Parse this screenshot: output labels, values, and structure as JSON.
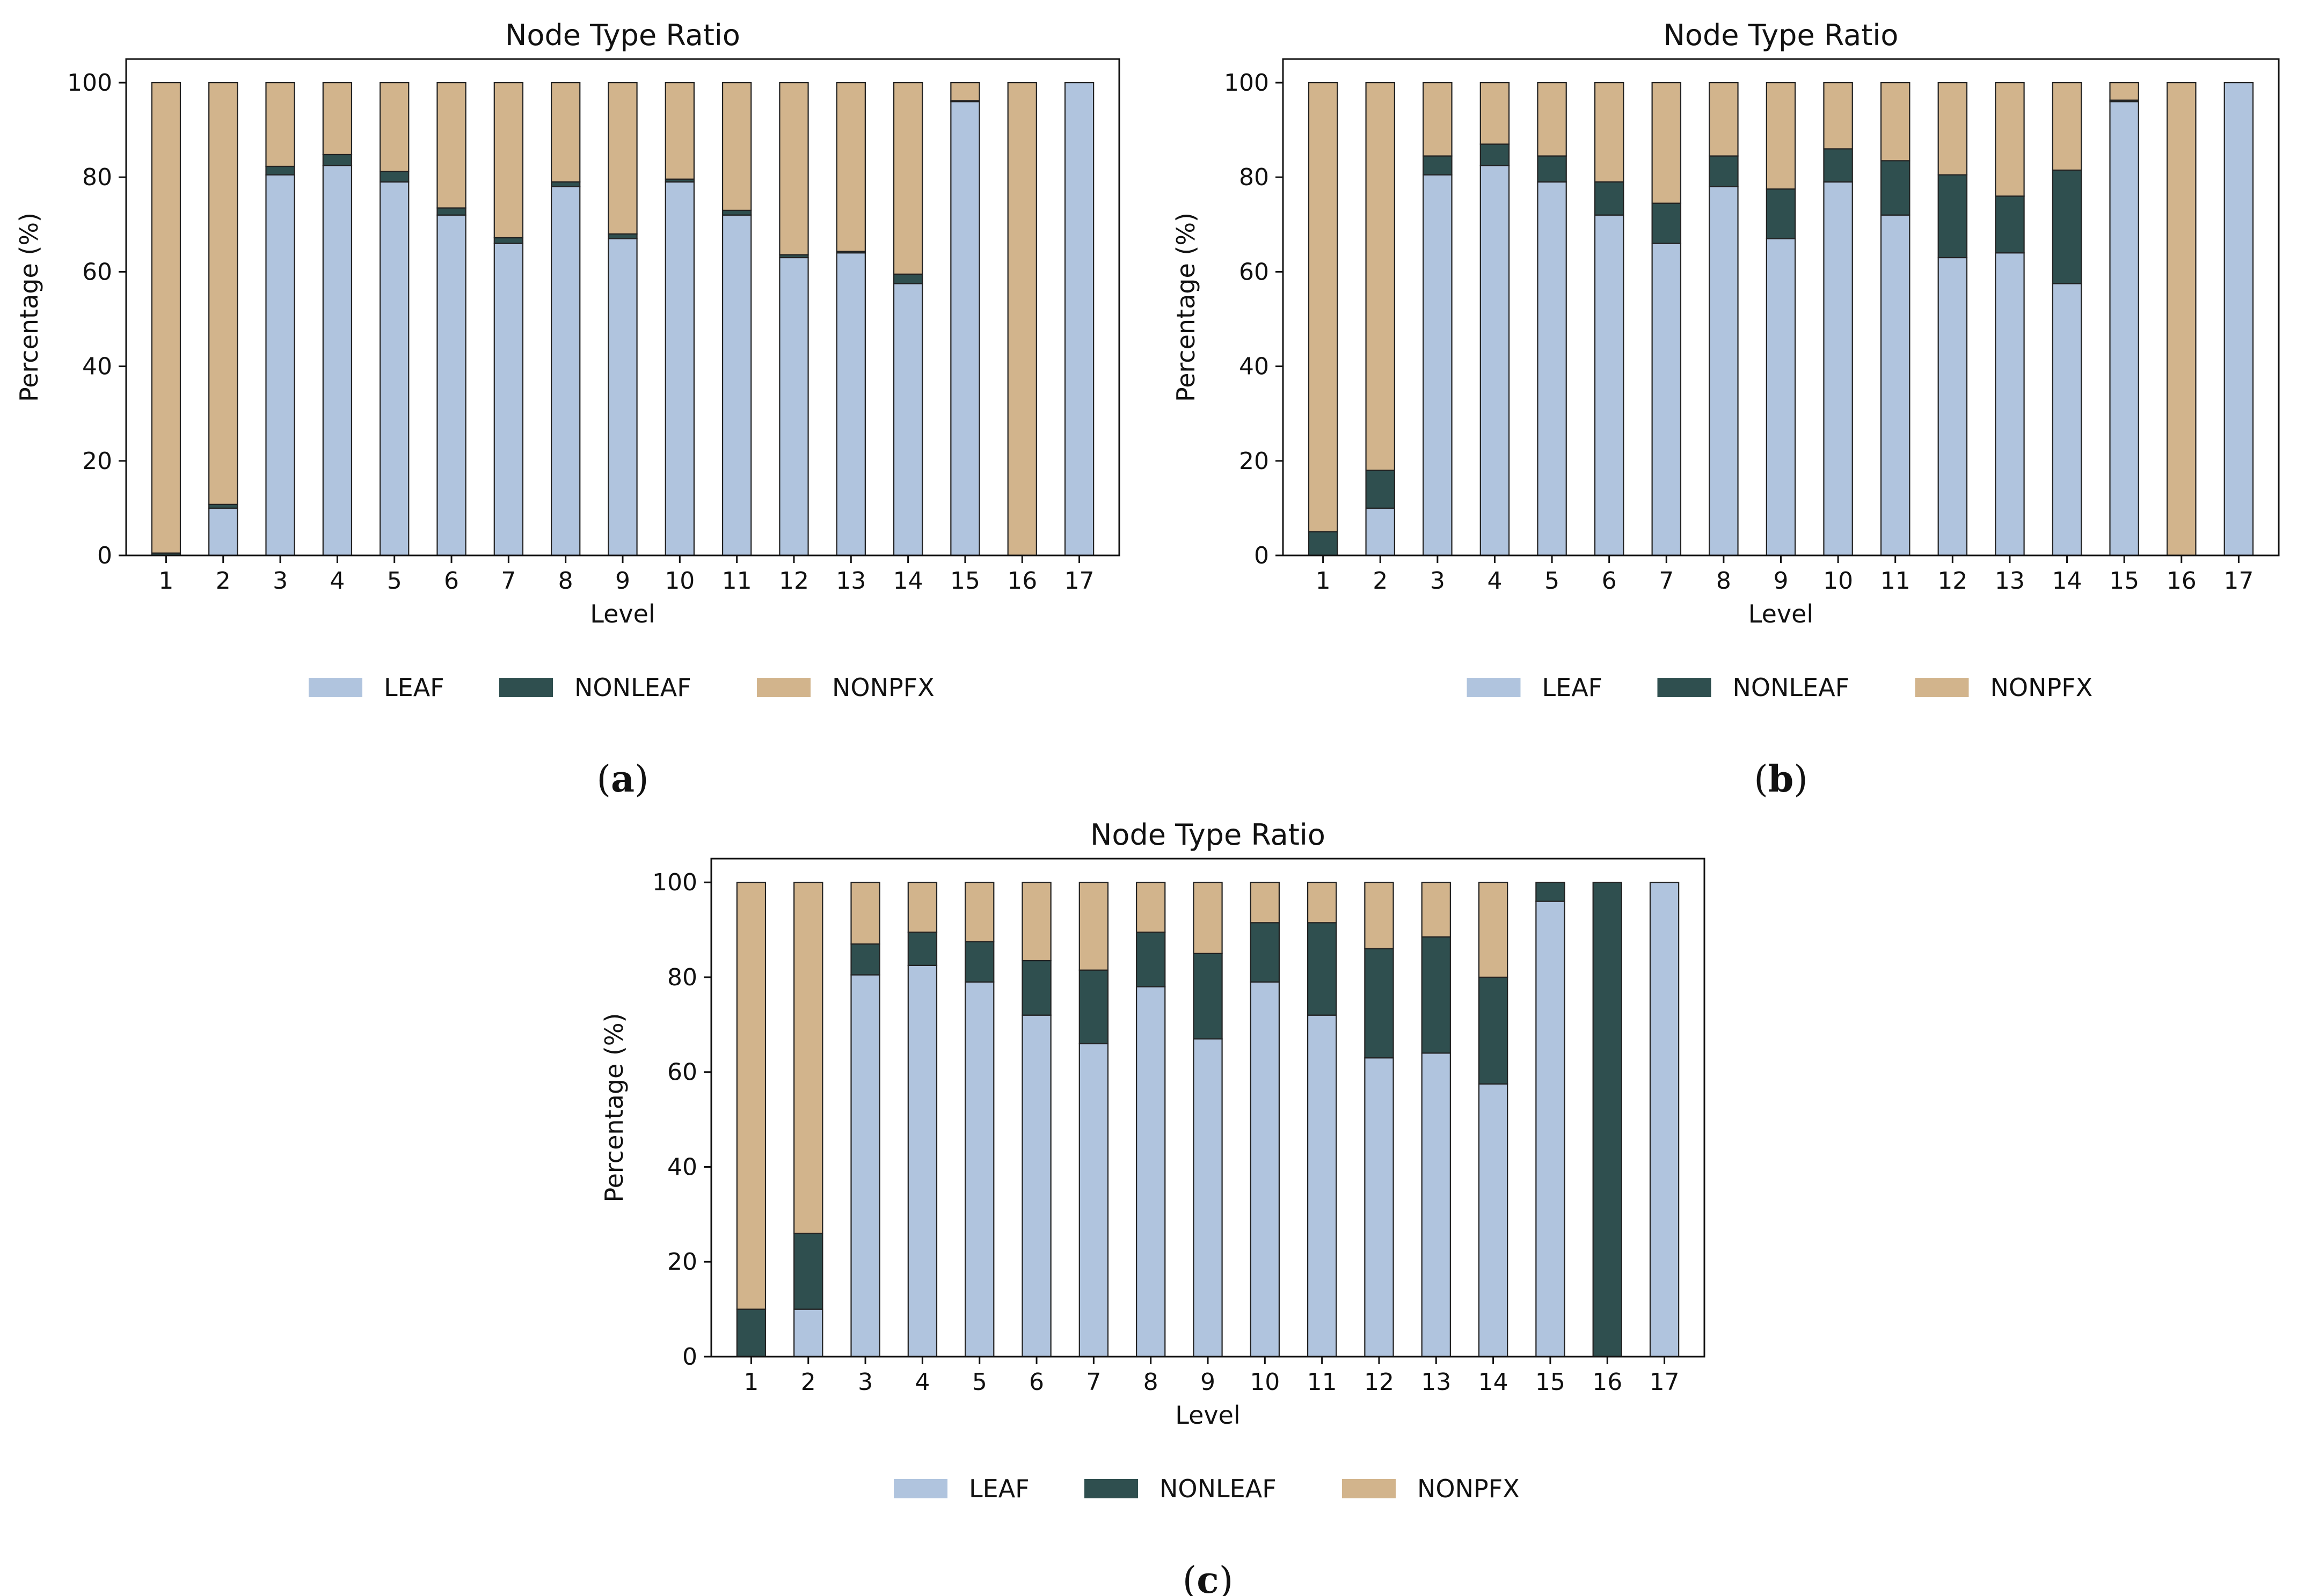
{
  "colors": {
    "LEAF": "#b0c4de",
    "NONLEAF": "#2f4f4f",
    "NONPFX": "#d2b48c",
    "edge": "#222222"
  },
  "chart_data": [
    {
      "type": "bar",
      "stacked": true,
      "panel": "a",
      "title": "Node Type Ratio",
      "xlabel": "Level",
      "ylabel": "Percentage (%)",
      "ylim": [
        0,
        105
      ],
      "yticks": [
        "0",
        "20",
        "40",
        "60",
        "80",
        "100"
      ],
      "categories": [
        "1",
        "2",
        "3",
        "4",
        "5",
        "6",
        "7",
        "8",
        "9",
        "10",
        "11",
        "12",
        "13",
        "14",
        "15",
        "16",
        "17"
      ],
      "series": [
        {
          "name": "LEAF",
          "values": [
            0,
            10,
            80.5,
            82.5,
            79,
            72,
            66,
            78,
            67,
            79,
            72,
            63,
            64,
            57.5,
            96,
            0,
            100
          ]
        },
        {
          "name": "NONLEAF",
          "values": [
            0.5,
            0.8,
            1.8,
            2.3,
            2.2,
            1.5,
            1.2,
            1,
            1,
            0.6,
            1,
            0.6,
            0.3,
            2,
            0.2,
            0,
            0
          ]
        },
        {
          "name": "NONPFX",
          "values": [
            99.5,
            89.2,
            17.7,
            15.2,
            18.8,
            26.5,
            32.8,
            21,
            32,
            20.4,
            27,
            36.4,
            35.7,
            40.5,
            3.8,
            100,
            0
          ]
        }
      ],
      "legend": [
        "LEAF",
        "NONLEAF",
        "NONPFX"
      ],
      "legend_position": "bottom-center",
      "caption_open": "(",
      "caption_letter": "a",
      "caption_close": ")"
    },
    {
      "type": "bar",
      "stacked": true,
      "panel": "b",
      "title": "Node Type Ratio",
      "xlabel": "Level",
      "ylabel": "Percentage (%)",
      "ylim": [
        0,
        105
      ],
      "yticks": [
        "0",
        "20",
        "40",
        "60",
        "80",
        "100"
      ],
      "categories": [
        "1",
        "2",
        "3",
        "4",
        "5",
        "6",
        "7",
        "8",
        "9",
        "10",
        "11",
        "12",
        "13",
        "14",
        "15",
        "16",
        "17"
      ],
      "series": [
        {
          "name": "LEAF",
          "values": [
            0,
            10,
            80.5,
            82.5,
            79,
            72,
            66,
            78,
            67,
            79,
            72,
            63,
            64,
            57.5,
            96,
            0,
            100
          ]
        },
        {
          "name": "NONLEAF",
          "values": [
            5,
            8,
            4,
            4.5,
            5.5,
            7,
            8.5,
            6.5,
            10.5,
            7,
            11.5,
            17.5,
            12,
            24,
            0.3,
            0,
            0
          ]
        },
        {
          "name": "NONPFX",
          "values": [
            95,
            82,
            15.5,
            13,
            15.5,
            21,
            25.5,
            15.5,
            22.5,
            14,
            16.5,
            19.5,
            24,
            18.5,
            3.7,
            100,
            0
          ]
        }
      ],
      "legend": [
        "LEAF",
        "NONLEAF",
        "NONPFX"
      ],
      "legend_position": "bottom-center",
      "caption_open": "(",
      "caption_letter": "b",
      "caption_close": ")"
    },
    {
      "type": "bar",
      "stacked": true,
      "panel": "c",
      "title": "Node Type Ratio",
      "xlabel": "Level",
      "ylabel": "Percentage (%)",
      "ylim": [
        0,
        105
      ],
      "yticks": [
        "0",
        "20",
        "40",
        "60",
        "80",
        "100"
      ],
      "categories": [
        "1",
        "2",
        "3",
        "4",
        "5",
        "6",
        "7",
        "8",
        "9",
        "10",
        "11",
        "12",
        "13",
        "14",
        "15",
        "16",
        "17"
      ],
      "series": [
        {
          "name": "LEAF",
          "values": [
            0,
            10,
            80.5,
            82.5,
            79,
            72,
            66,
            78,
            67,
            79,
            72,
            63,
            64,
            57.5,
            96,
            0,
            100
          ]
        },
        {
          "name": "NONLEAF",
          "values": [
            10,
            16,
            6.5,
            7,
            8.5,
            11.5,
            15.5,
            11.5,
            18,
            12.5,
            19.5,
            23,
            24.5,
            22.5,
            4,
            100,
            0
          ]
        },
        {
          "name": "NONPFX",
          "values": [
            90,
            74,
            13,
            10.5,
            12.5,
            16.5,
            18.5,
            10.5,
            15,
            8.5,
            8.5,
            14,
            11.5,
            20,
            0,
            0,
            0
          ]
        }
      ],
      "legend": [
        "LEAF",
        "NONLEAF",
        "NONPFX"
      ],
      "legend_position": "bottom-center",
      "caption_open": "(",
      "caption_letter": "c",
      "caption_close": ")"
    }
  ]
}
